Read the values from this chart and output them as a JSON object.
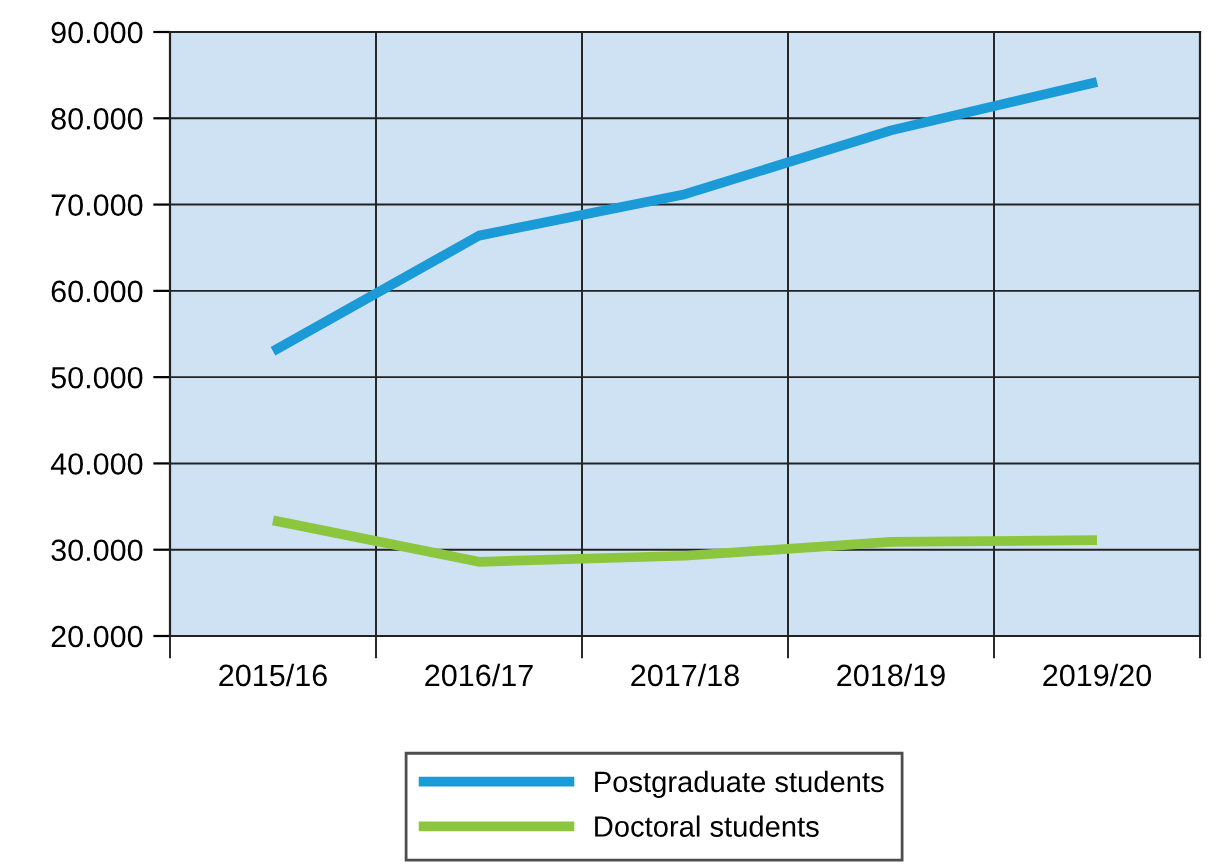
{
  "chart_data": {
    "type": "line",
    "categories": [
      "2015/16",
      "2016/17",
      "2017/18",
      "2018/19",
      "2019/20"
    ],
    "series": [
      {
        "name": "Postgraduate students",
        "color": "#1a9ad6",
        "values": [
          53000,
          66400,
          71200,
          78600,
          84200
        ]
      },
      {
        "name": "Doctoral students",
        "color": "#8cc63f",
        "values": [
          33400,
          28600,
          29300,
          30900,
          31100
        ]
      }
    ],
    "ylim": [
      20000,
      90000
    ],
    "yticks": [
      {
        "value": 20000,
        "label": "20.000"
      },
      {
        "value": 30000,
        "label": "30.000"
      },
      {
        "value": 40000,
        "label": "40.000"
      },
      {
        "value": 50000,
        "label": "50.000"
      },
      {
        "value": 60000,
        "label": "60.000"
      },
      {
        "value": 70000,
        "label": "70.000"
      },
      {
        "value": 80000,
        "label": "80.000"
      },
      {
        "value": 90000,
        "label": "90.000"
      }
    ],
    "grid": true,
    "legend": "bottom",
    "marker": "none",
    "line_style": "solid"
  }
}
